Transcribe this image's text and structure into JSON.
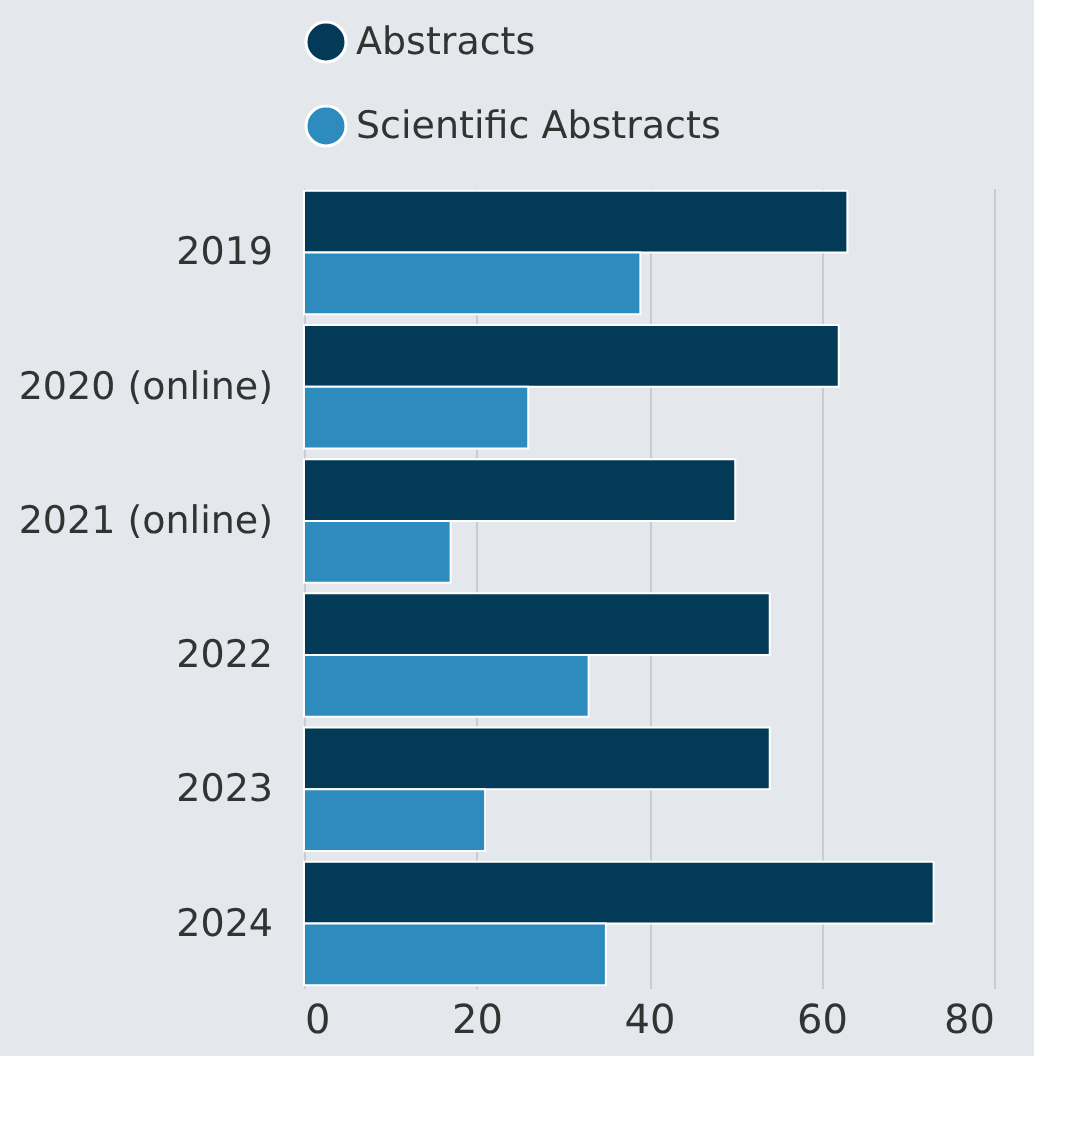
{
  "chart_data": {
    "type": "bar",
    "orientation": "horizontal",
    "categories": [
      "2019",
      "2020 (online)",
      "2021 (online)",
      "2022",
      "2023",
      "2024"
    ],
    "series": [
      {
        "name": "Abstracts",
        "color": "#033a57",
        "values": [
          63,
          62,
          50,
          54,
          54,
          73
        ]
      },
      {
        "name": "Scientific Abstracts",
        "color": "#2e8bbd",
        "values": [
          39,
          26,
          17,
          33,
          21,
          35
        ]
      }
    ],
    "xlim": [
      0,
      80
    ],
    "xticks": [
      0,
      20,
      40,
      60,
      80
    ],
    "grid": "x",
    "legend": "top"
  }
}
